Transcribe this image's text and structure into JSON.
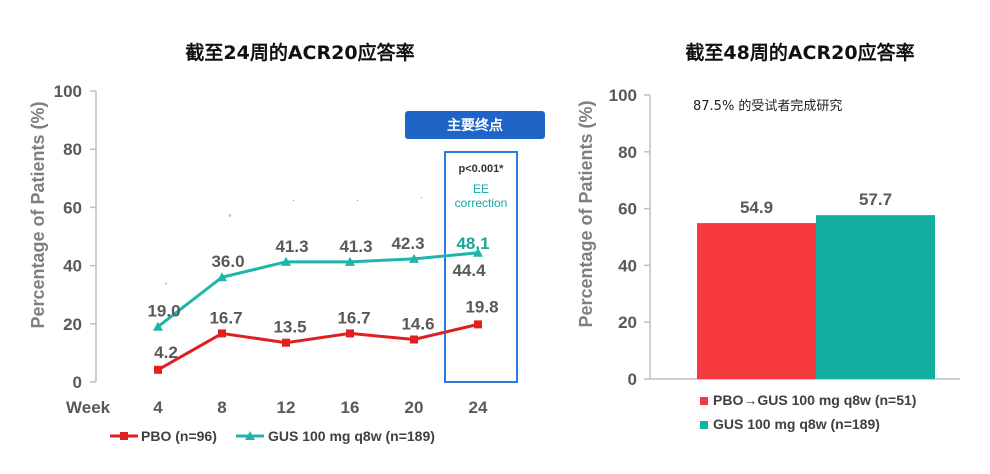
{
  "chart_data": [
    {
      "type": "line",
      "title": "截至24周的ACR20应答率",
      "ylabel": "Percentage of Patients (%)",
      "xlabel": "Week",
      "ylim": [
        0,
        100
      ],
      "yticks": [
        "0",
        "20",
        "40",
        "60",
        "80",
        "100"
      ],
      "categories": [
        "4",
        "8",
        "12",
        "16",
        "20",
        "24"
      ],
      "series": [
        {
          "name": "PBO (n=96)",
          "color": "#e02020",
          "values": [
            4.2,
            16.7,
            13.5,
            16.7,
            14.6,
            19.8
          ],
          "labels": [
            "4.2",
            "16.7",
            "13.5",
            "16.7",
            "14.6",
            "19.8"
          ]
        },
        {
          "name": "GUS 100 mg q8w (n=189)",
          "color": "#1fb5a9",
          "values": [
            19.0,
            36.0,
            41.3,
            41.3,
            42.3,
            44.4
          ],
          "labels": [
            "19.0",
            "36.0",
            "41.3",
            "41.3",
            "42.3",
            "44.4"
          ]
        }
      ],
      "significance_marks": [
        ",",
        "˚",
        "˙",
        "˙",
        "˙"
      ],
      "highlight": {
        "badge": "主要终点",
        "pvalue": "p<0.001*",
        "ee_label": "EE",
        "ee_sub": "correction",
        "ee_value": "48.1"
      }
    },
    {
      "type": "bar",
      "title": "截至48周的ACR20应答率",
      "ylabel": "Percentage of Patients (%)",
      "ylim": [
        0,
        100
      ],
      "yticks": [
        "0",
        "20",
        "40",
        "60",
        "80",
        "100"
      ],
      "note": "87.5% 的受试者完成研究",
      "bars": [
        {
          "name": "PBO→GUS 100 mg q8w (n=51)",
          "value": 54.9,
          "label": "54.9",
          "color": "#f5393f"
        },
        {
          "name": "GUS 100 mg q8w (n=189)",
          "value": 57.7,
          "label": "57.7",
          "color": "#12ae9f"
        }
      ]
    }
  ]
}
